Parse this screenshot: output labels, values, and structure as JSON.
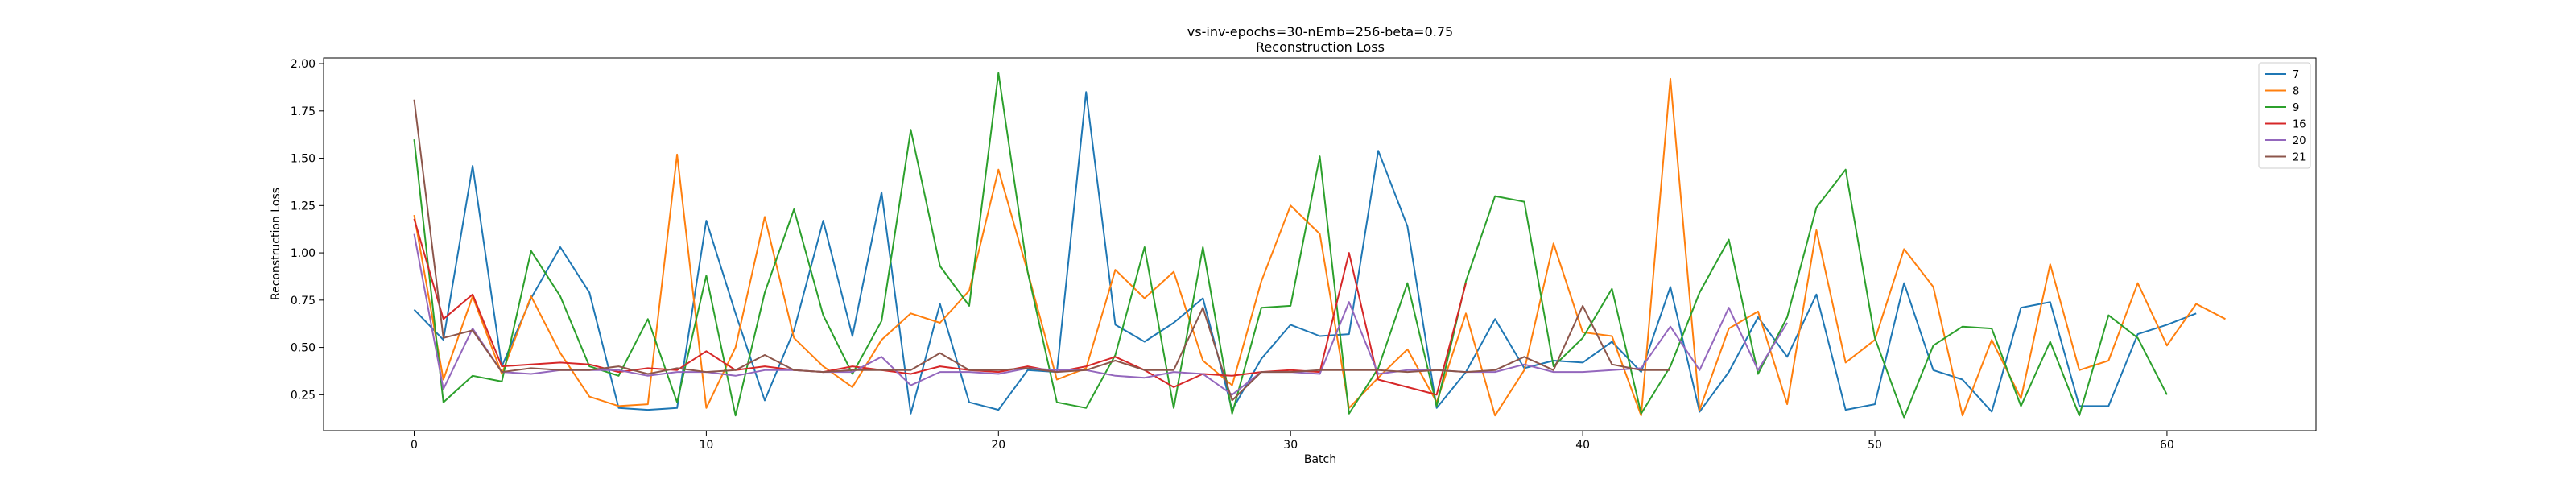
{
  "chart_data": {
    "type": "line",
    "title": "vs-inv-epochs=30-nEmb=256-beta=0.75",
    "subtitle": "Reconstruction Loss",
    "xlabel": "Batch",
    "ylabel": "Reconstruction Loss",
    "xlim": [
      -3.1,
      65.1
    ],
    "ylim": [
      0.06,
      2.03
    ],
    "xticks": [
      0,
      10,
      20,
      30,
      40,
      50,
      60
    ],
    "yticks": [
      0.25,
      0.5,
      0.75,
      1.0,
      1.25,
      1.5,
      1.75,
      2.0
    ],
    "grid": false,
    "legend_position": "top-right",
    "series": [
      {
        "name": "7",
        "color": "#1f77b4",
        "values": [
          0.7,
          0.54,
          1.46,
          0.4,
          0.76,
          1.03,
          0.79,
          0.18,
          0.17,
          0.18,
          1.17,
          0.68,
          0.22,
          0.59,
          1.17,
          0.56,
          1.32,
          0.15,
          0.73,
          0.21,
          0.17,
          0.38,
          0.37,
          1.85,
          0.62,
          0.53,
          0.63,
          0.76,
          0.17,
          0.44,
          0.62,
          0.56,
          0.57,
          1.54,
          1.14,
          0.18,
          0.37,
          0.65,
          0.39,
          0.43,
          0.42,
          0.53,
          0.37,
          0.82,
          0.16,
          0.37,
          0.66,
          0.45,
          0.78,
          0.17,
          0.2,
          0.84,
          0.38,
          0.33,
          0.16,
          0.71,
          0.74,
          0.19,
          0.19,
          0.57,
          0.62,
          0.68
        ]
      },
      {
        "name": "8",
        "color": "#ff7f0e",
        "values": [
          1.2,
          0.33,
          0.77,
          0.36,
          0.77,
          0.47,
          0.24,
          0.19,
          0.2,
          1.52,
          0.18,
          0.5,
          1.19,
          0.55,
          0.4,
          0.29,
          0.54,
          0.68,
          0.63,
          0.8,
          1.44,
          0.9,
          0.33,
          0.39,
          0.91,
          0.76,
          0.9,
          0.43,
          0.3,
          0.85,
          1.25,
          1.1,
          0.18,
          0.34,
          0.49,
          0.21,
          0.68,
          0.14,
          0.38,
          1.05,
          0.58,
          0.56,
          0.14,
          1.92,
          0.17,
          0.6,
          0.69,
          0.2,
          1.12,
          0.42,
          0.54,
          1.02,
          0.82,
          0.14,
          0.54,
          0.23,
          0.94,
          0.38,
          0.43,
          0.84,
          0.51,
          0.73,
          0.65
        ]
      },
      {
        "name": "9",
        "color": "#2ca02c",
        "values": [
          1.6,
          0.21,
          0.35,
          0.32,
          1.01,
          0.77,
          0.4,
          0.35,
          0.65,
          0.21,
          0.88,
          0.14,
          0.79,
          1.23,
          0.67,
          0.36,
          0.64,
          1.65,
          0.93,
          0.72,
          1.95,
          0.9,
          0.21,
          0.18,
          0.46,
          1.03,
          0.18,
          1.03,
          0.15,
          0.71,
          0.72,
          1.51,
          0.15,
          0.39,
          0.84,
          0.19,
          0.85,
          1.3,
          1.27,
          0.4,
          0.55,
          0.81,
          0.15,
          0.4,
          0.79,
          1.07,
          0.36,
          0.66,
          1.24,
          1.44,
          0.55,
          0.13,
          0.51,
          0.61,
          0.6,
          0.19,
          0.53,
          0.14,
          0.67,
          0.55,
          0.25
        ]
      },
      {
        "name": "16",
        "color": "#d62728",
        "values": [
          1.18,
          0.65,
          0.78,
          0.4,
          0.41,
          0.42,
          0.41,
          0.37,
          0.39,
          0.38,
          0.48,
          0.38,
          0.4,
          0.38,
          0.37,
          0.4,
          0.38,
          0.36,
          0.4,
          0.38,
          0.37,
          0.4,
          0.37,
          0.4,
          0.45,
          0.38,
          0.29,
          0.36,
          0.35,
          0.37,
          0.38,
          0.37,
          1.0,
          0.33,
          0.29,
          0.25,
          0.84
        ]
      },
      {
        "name": "20",
        "color": "#9467bd",
        "values": [
          1.1,
          0.28,
          0.6,
          0.37,
          0.36,
          0.38,
          0.38,
          0.38,
          0.35,
          0.37,
          0.37,
          0.35,
          0.38,
          0.38,
          0.37,
          0.37,
          0.45,
          0.3,
          0.37,
          0.37,
          0.36,
          0.39,
          0.38,
          0.38,
          0.35,
          0.34,
          0.37,
          0.36,
          0.25,
          0.37,
          0.37,
          0.36,
          0.74,
          0.36,
          0.38,
          0.38,
          0.37,
          0.37,
          0.41,
          0.37,
          0.37,
          0.38,
          0.39,
          0.61,
          0.38,
          0.71,
          0.38,
          0.63
        ]
      },
      {
        "name": "21",
        "color": "#8c564b",
        "values": [
          1.81,
          0.55,
          0.59,
          0.37,
          0.39,
          0.38,
          0.38,
          0.4,
          0.36,
          0.39,
          0.37,
          0.38,
          0.46,
          0.38,
          0.37,
          0.38,
          0.38,
          0.38,
          0.47,
          0.38,
          0.38,
          0.39,
          0.37,
          0.38,
          0.43,
          0.38,
          0.38,
          0.71,
          0.22,
          0.37,
          0.37,
          0.38,
          0.38,
          0.38,
          0.37,
          0.38,
          0.37,
          0.38,
          0.45,
          0.38,
          0.72,
          0.41,
          0.38,
          0.38
        ]
      }
    ]
  }
}
